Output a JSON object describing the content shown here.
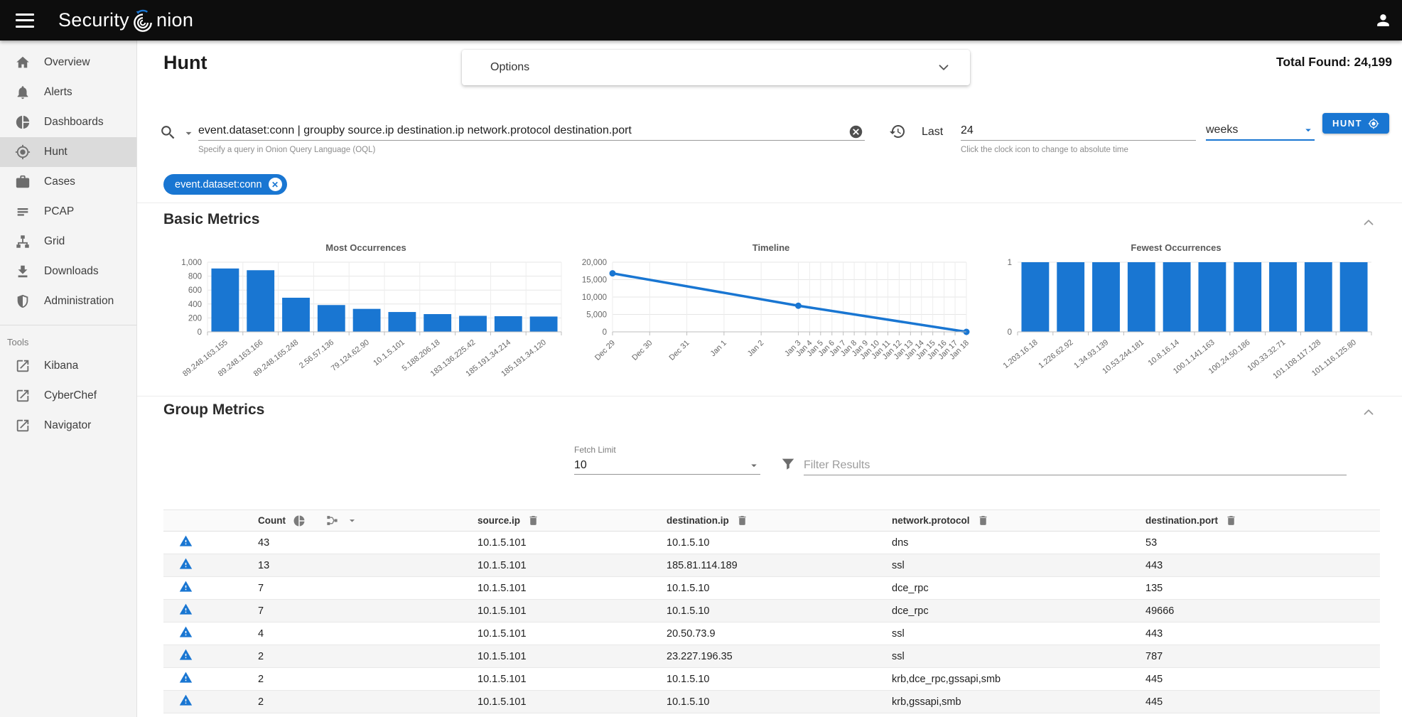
{
  "colors": {
    "accent": "#1976d2",
    "topbar": "#0d0d0d",
    "sidebar_bg": "#f4f4f4"
  },
  "topbar": {
    "brand_left": "Security",
    "brand_right": "nion"
  },
  "sidebar": {
    "items": [
      {
        "label": "Overview",
        "icon": "home",
        "selected": false
      },
      {
        "label": "Alerts",
        "icon": "bell",
        "selected": false
      },
      {
        "label": "Dashboards",
        "icon": "pie",
        "selected": false
      },
      {
        "label": "Hunt",
        "icon": "crosshair",
        "selected": true
      },
      {
        "label": "Cases",
        "icon": "briefcase",
        "selected": false
      },
      {
        "label": "PCAP",
        "icon": "lines",
        "selected": false
      },
      {
        "label": "Grid",
        "icon": "lan",
        "selected": false
      },
      {
        "label": "Downloads",
        "icon": "download",
        "selected": false
      },
      {
        "label": "Administration",
        "icon": "shield",
        "selected": false
      }
    ],
    "tools_label": "Tools",
    "tools": [
      {
        "label": "Kibana",
        "icon": "external"
      },
      {
        "label": "CyberChef",
        "icon": "external"
      },
      {
        "label": "Navigator",
        "icon": "external"
      }
    ]
  },
  "header": {
    "page_title": "Hunt",
    "options_label": "Options",
    "total_found_label": "Total Found:",
    "total_found_value": "24,199"
  },
  "search": {
    "query": "event.dataset:conn | groupby source.ip destination.ip network.protocol destination.port",
    "helper": "Specify a query in Onion Query Language (OQL)",
    "time_label": "Last",
    "time_value": "24",
    "time_unit": "weeks",
    "time_helper": "Click the clock icon to change to absolute time",
    "hunt_button": "HUNT",
    "filter_chip": "event.dataset:conn"
  },
  "sections": {
    "basic_metrics": "Basic Metrics",
    "group_metrics": "Group Metrics"
  },
  "group_controls": {
    "fetch_limit_label": "Fetch Limit",
    "fetch_limit_value": "10",
    "filter_placeholder": "Filter Results"
  },
  "table": {
    "columns": [
      "Count",
      "source.ip",
      "destination.ip",
      "network.protocol",
      "destination.port"
    ],
    "rows": [
      {
        "count": "43",
        "source_ip": "10.1.5.101",
        "destination_ip": "10.1.5.10",
        "network_protocol": "dns",
        "destination_port": "53"
      },
      {
        "count": "13",
        "source_ip": "10.1.5.101",
        "destination_ip": "185.81.114.189",
        "network_protocol": "ssl",
        "destination_port": "443"
      },
      {
        "count": "7",
        "source_ip": "10.1.5.101",
        "destination_ip": "10.1.5.10",
        "network_protocol": "dce_rpc",
        "destination_port": "135"
      },
      {
        "count": "7",
        "source_ip": "10.1.5.101",
        "destination_ip": "10.1.5.10",
        "network_protocol": "dce_rpc",
        "destination_port": "49666"
      },
      {
        "count": "4",
        "source_ip": "10.1.5.101",
        "destination_ip": "20.50.73.9",
        "network_protocol": "ssl",
        "destination_port": "443"
      },
      {
        "count": "2",
        "source_ip": "10.1.5.101",
        "destination_ip": "23.227.196.35",
        "network_protocol": "ssl",
        "destination_port": "787"
      },
      {
        "count": "2",
        "source_ip": "10.1.5.101",
        "destination_ip": "10.1.5.10",
        "network_protocol": "krb,dce_rpc,gssapi,smb",
        "destination_port": "445"
      },
      {
        "count": "2",
        "source_ip": "10.1.5.101",
        "destination_ip": "10.1.5.10",
        "network_protocol": "krb,gssapi,smb",
        "destination_port": "445"
      }
    ]
  },
  "chart_data": [
    {
      "type": "bar",
      "title": "Most Occurrences",
      "categories": [
        "89.248.163.155",
        "89.248.163.166",
        "89.248.165.248",
        "2.56.57.136",
        "79.124.62.90",
        "10.1.5.101",
        "5.188.206.18",
        "183.136.225.42",
        "185.191.34.214",
        "185.191.34.120"
      ],
      "values": [
        910,
        885,
        490,
        385,
        330,
        285,
        255,
        230,
        225,
        220
      ],
      "ylim": [
        0,
        1000
      ],
      "yticks": [
        1000,
        800,
        600,
        400,
        200,
        0
      ],
      "label_angle": -38,
      "grid": true,
      "bar_color": "#1976d2"
    },
    {
      "type": "line",
      "title": "Timeline",
      "x_ticks": [
        {
          "label": "Dec 29",
          "f": 0.0
        },
        {
          "label": "Dec 30",
          "f": 0.105
        },
        {
          "label": "Dec 31",
          "f": 0.21
        },
        {
          "label": "Jan 1",
          "f": 0.315
        },
        {
          "label": "Jan 2",
          "f": 0.42
        },
        {
          "label": "Jan 3",
          "f": 0.525
        },
        {
          "label": "Jan 4",
          "f": 0.557
        },
        {
          "label": "Jan 5",
          "f": 0.588
        },
        {
          "label": "Jan 6",
          "f": 0.62
        },
        {
          "label": "Jan 7",
          "f": 0.652
        },
        {
          "label": "Jan 8",
          "f": 0.683
        },
        {
          "label": "Jan 9",
          "f": 0.715
        },
        {
          "label": "Jan 10",
          "f": 0.747
        },
        {
          "label": "Jan 11",
          "f": 0.778
        },
        {
          "label": "Jan 12",
          "f": 0.81
        },
        {
          "label": "Jan 13",
          "f": 0.842
        },
        {
          "label": "Jan 14",
          "f": 0.873
        },
        {
          "label": "Jan 15",
          "f": 0.905
        },
        {
          "label": "Jan 16",
          "f": 0.937
        },
        {
          "label": "Jan 17",
          "f": 0.968
        },
        {
          "label": "Jan 18",
          "f": 1.0
        }
      ],
      "points": [
        {
          "x": "Dec 29",
          "f": 0.0,
          "v": 16800
        },
        {
          "x": "Jan 3",
          "f": 0.525,
          "v": 7500
        },
        {
          "x": "Jan 18",
          "f": 1.0,
          "v": 0
        }
      ],
      "ylim": [
        0,
        20000
      ],
      "yticks": [
        20000,
        15000,
        10000,
        5000,
        0
      ],
      "label_angle": -45,
      "grid": true,
      "line_color": "#1976d2"
    },
    {
      "type": "bar",
      "title": "Fewest Occurrences",
      "categories": [
        "1.203.16.18",
        "1.226.62.92",
        "1.34.93.139",
        "10.53.244.181",
        "10.8.16.14",
        "100.1.141.163",
        "100.24.50.186",
        "100.33.32.71",
        "101.108.117.128",
        "101.116.125.80"
      ],
      "values": [
        1,
        1,
        1,
        1,
        1,
        1,
        1,
        1,
        1,
        1
      ],
      "ylim": [
        0,
        1
      ],
      "yticks": [
        1,
        0
      ],
      "label_angle": -38,
      "grid": false,
      "bar_color": "#1976d2"
    }
  ]
}
